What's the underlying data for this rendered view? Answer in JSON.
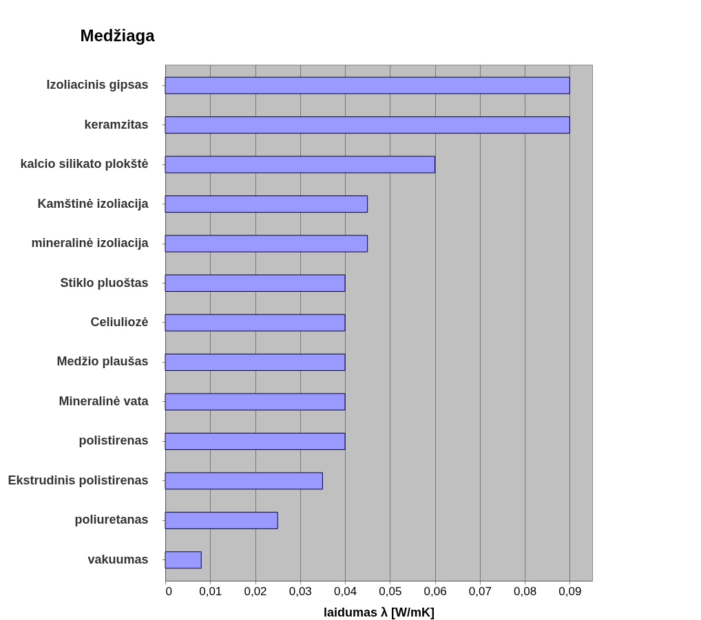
{
  "chart_data": {
    "type": "bar",
    "orientation": "horizontal",
    "ylabel": "Medžiaga",
    "xlabel": "laidumas λ [W/mK]",
    "categories": [
      "Izoliacinis gipsas",
      "keramzitas",
      "kalcio silikato plokštė",
      "Kamštinė izoliacija",
      "mineralinė izoliacija",
      "Stiklo pluoštas",
      "Celiuliozė",
      "Medžio plaušas",
      "Mineralinė vata",
      "polistirenas",
      "Ekstrudinis polistirenas",
      "poliuretanas",
      "vakuumas"
    ],
    "values": [
      0.09,
      0.09,
      0.06,
      0.045,
      0.045,
      0.04,
      0.04,
      0.04,
      0.04,
      0.04,
      0.035,
      0.025,
      0.008
    ],
    "color": "#9999ff",
    "xlim": [
      0,
      0.095
    ],
    "xticks": [
      0,
      {
        "value": 0.01,
        "label": "0,01"
      },
      {
        "value": 0.02,
        "label": "0,02"
      },
      {
        "value": 0.03,
        "label": "0,03"
      },
      {
        "value": 0.04,
        "label": "0,04"
      },
      {
        "value": 0.05,
        "label": "0,05"
      },
      {
        "value": 0.06,
        "label": "0,06"
      },
      {
        "value": 0.07,
        "label": "0,07"
      },
      {
        "value": 0.08,
        "label": "0,08"
      },
      {
        "value": 0.09,
        "label": "0,09"
      }
    ],
    "grid": "x"
  }
}
